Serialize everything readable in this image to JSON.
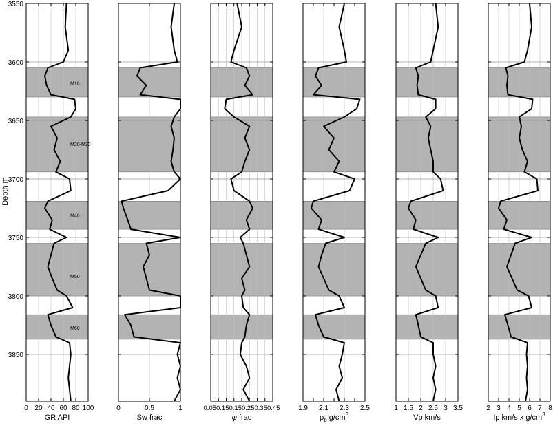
{
  "chart_data": {
    "type": "line",
    "figure": "well-log-panels",
    "y_axis": {
      "label": "Depth m",
      "range": [
        3550,
        3890
      ],
      "ticks": [
        3550,
        3600,
        3650,
        3700,
        3750,
        3800,
        3850
      ],
      "inverted": true,
      "grid": true
    },
    "zones": [
      {
        "name": "M10",
        "top": 3605,
        "base": 3630,
        "label_depth": 3618
      },
      {
        "name": "M20-M30",
        "top": 3647,
        "base": 3694,
        "label_depth": 3670
      },
      {
        "name": "M40",
        "top": 3719,
        "base": 3743,
        "label_depth": 3731
      },
      {
        "name": "M50",
        "top": 3755,
        "base": 3800,
        "label_depth": 3783
      },
      {
        "name": "M60",
        "top": 3816,
        "base": 3837,
        "label_depth": 3827
      }
    ],
    "depth_samples": [
      3550,
      3570,
      3590,
      3600,
      3605,
      3612,
      3620,
      3628,
      3632,
      3640,
      3647,
      3655,
      3665,
      3675,
      3685,
      3694,
      3700,
      3710,
      3719,
      3725,
      3735,
      3743,
      3750,
      3755,
      3765,
      3775,
      3785,
      3795,
      3800,
      3810,
      3816,
      3825,
      3835,
      3840,
      3850,
      3860,
      3870,
      3880,
      3890
    ],
    "tracks": [
      {
        "label": "GR API",
        "xlim": [
          0,
          100
        ],
        "ticks": [
          0,
          20,
          40,
          60,
          80,
          100
        ],
        "tick_labels": [
          "0",
          "20",
          "40",
          "60",
          "80",
          "100"
        ],
        "grid": true,
        "values": [
          65,
          63,
          68,
          60,
          35,
          30,
          33,
          40,
          78,
          80,
          72,
          40,
          50,
          45,
          55,
          48,
          70,
          72,
          35,
          30,
          42,
          38,
          65,
          45,
          40,
          35,
          42,
          50,
          65,
          75,
          35,
          40,
          48,
          70,
          72,
          70,
          68,
          70,
          72
        ]
      },
      {
        "label": "Sw frac",
        "xlim": [
          0,
          1
        ],
        "ticks": [
          0,
          0.5,
          1
        ],
        "tick_labels": [
          "0",
          "0.5",
          "1"
        ],
        "grid": true,
        "values": [
          0.9,
          0.85,
          0.9,
          0.95,
          0.35,
          0.3,
          0.45,
          0.35,
          1.0,
          1.0,
          0.9,
          0.85,
          0.9,
          0.88,
          0.85,
          0.9,
          1.0,
          0.8,
          0.05,
          0.08,
          0.15,
          0.2,
          1.0,
          0.45,
          0.5,
          0.4,
          0.45,
          0.5,
          1.0,
          1.0,
          0.1,
          0.2,
          0.25,
          1.0,
          0.95,
          1.0,
          0.95,
          1.0,
          0.9
        ]
      },
      {
        "label": "φ frac",
        "label_prefix": "φ",
        "label_text": "frac",
        "xlim": [
          0.05,
          0.45
        ],
        "ticks": [
          0.05,
          0.1,
          0.15,
          0.2,
          0.25,
          0.3,
          0.35,
          0.4,
          0.45
        ],
        "tick_labels": [
          "0.05",
          "0.1",
          "0.15",
          "0.2",
          "0.25",
          "0.3",
          "0.35",
          "0.4",
          "0.45"
        ],
        "tick_label_text": "0.050.150.150.250.350.45",
        "grid": true,
        "values": [
          0.22,
          0.25,
          0.2,
          0.18,
          0.28,
          0.3,
          0.27,
          0.32,
          0.15,
          0.14,
          0.2,
          0.3,
          0.27,
          0.3,
          0.27,
          0.25,
          0.18,
          0.2,
          0.3,
          0.32,
          0.28,
          0.3,
          0.24,
          0.26,
          0.28,
          0.3,
          0.25,
          0.27,
          0.25,
          0.26,
          0.3,
          0.28,
          0.27,
          0.25,
          0.24,
          0.28,
          0.3,
          0.26,
          0.3
        ]
      },
      {
        "label": "ρb g/cm3",
        "label_rho": "ρ",
        "label_sub": "b",
        "label_unit": "g/cm",
        "label_sup": "3",
        "xlim": [
          1.9,
          2.5
        ],
        "ticks": [
          1.9,
          2.1,
          2.3,
          2.5
        ],
        "tick_labels": [
          "1.9",
          "2.1",
          "2.3",
          "2.5"
        ],
        "minor_ticks": [
          2.0,
          2.2,
          2.4
        ],
        "grid": true,
        "values": [
          2.3,
          2.25,
          2.3,
          2.32,
          2.05,
          2.02,
          2.08,
          2.0,
          2.45,
          2.42,
          2.3,
          2.1,
          2.2,
          2.15,
          2.25,
          2.2,
          2.4,
          2.35,
          2.0,
          1.98,
          2.08,
          2.05,
          2.3,
          2.12,
          2.08,
          2.05,
          2.1,
          2.15,
          2.25,
          2.3,
          2.02,
          2.05,
          2.1,
          2.3,
          2.28,
          2.25,
          2.28,
          2.22,
          2.25
        ]
      },
      {
        "label": "Vp km/s",
        "xlim": [
          1,
          3.5
        ],
        "ticks": [
          1,
          1.5,
          2,
          2.5,
          3,
          3.5
        ],
        "tick_labels": [
          "1",
          "1.5",
          "2",
          "2.5",
          "3",
          "3.5"
        ],
        "grid": true,
        "values": [
          2.6,
          2.7,
          2.5,
          2.4,
          1.8,
          1.9,
          1.85,
          1.9,
          2.6,
          2.6,
          2.2,
          2.4,
          2.3,
          2.4,
          2.5,
          2.5,
          2.8,
          2.9,
          1.6,
          1.5,
          1.8,
          1.7,
          2.7,
          2.2,
          2.0,
          1.8,
          2.0,
          2.2,
          2.6,
          2.7,
          1.8,
          1.9,
          2.0,
          2.5,
          2.5,
          2.6,
          2.5,
          2.6,
          2.5
        ]
      },
      {
        "label": "Ip km/s x g/cm3",
        "label_text": "Ip km/s x g/cm",
        "label_sup": "3",
        "xlim": [
          2,
          8
        ],
        "ticks": [
          2,
          3,
          4,
          5,
          6,
          7,
          8
        ],
        "tick_labels": [
          "2",
          "3",
          "4",
          "5",
          "6",
          "7",
          "8"
        ],
        "grid": true,
        "values": [
          6.0,
          6.2,
          5.8,
          5.5,
          3.7,
          3.9,
          3.8,
          3.9,
          6.3,
          6.2,
          5.0,
          5.2,
          5.0,
          5.3,
          5.8,
          5.5,
          6.7,
          6.8,
          3.2,
          3.0,
          3.8,
          3.5,
          6.2,
          4.6,
          4.2,
          3.8,
          4.3,
          4.8,
          5.9,
          6.2,
          3.6,
          3.9,
          4.2,
          5.8,
          5.7,
          5.8,
          5.7,
          5.8,
          5.6
        ]
      }
    ],
    "colors": {
      "zone_fill": "#b3b3b3",
      "line": "#000000",
      "grid": "#bdbdbd",
      "depth_grid": "#9a9a9a"
    }
  }
}
